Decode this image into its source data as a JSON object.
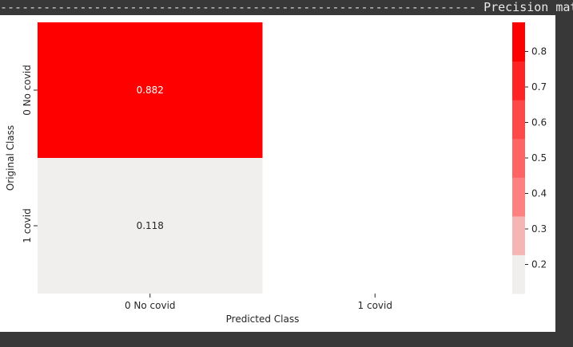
{
  "banner": {
    "left_dashes": "------------------------------------------------------------------ ",
    "title": "Precision matrix",
    "right_dashes": " ------"
  },
  "chart_data": {
    "type": "heatmap",
    "title": "",
    "xlabel": "Predicted Class",
    "ylabel": "Original Class",
    "x_categories": [
      "0 No covid",
      "1 covid"
    ],
    "y_categories": [
      "0 No covid",
      "1 covid"
    ],
    "cells": [
      {
        "row": 0,
        "col": 0,
        "value": 0.882,
        "label": "0.882"
      },
      {
        "row": 1,
        "col": 0,
        "value": 0.118,
        "label": "0.118"
      }
    ],
    "empty_cells": [
      {
        "row": 0,
        "col": 1
      },
      {
        "row": 1,
        "col": 1
      }
    ],
    "colorbar": {
      "ticks": [
        "0.2",
        "0.3",
        "0.4",
        "0.5",
        "0.6",
        "0.7",
        "0.8"
      ],
      "vmin": 0.118,
      "vmax": 0.882,
      "n_bins": 7,
      "colors": [
        "#f0efed",
        "#f5b5b5",
        "#ff8080",
        "#ff6464",
        "#ff4848",
        "#ff2424",
        "#ff0000"
      ]
    }
  }
}
